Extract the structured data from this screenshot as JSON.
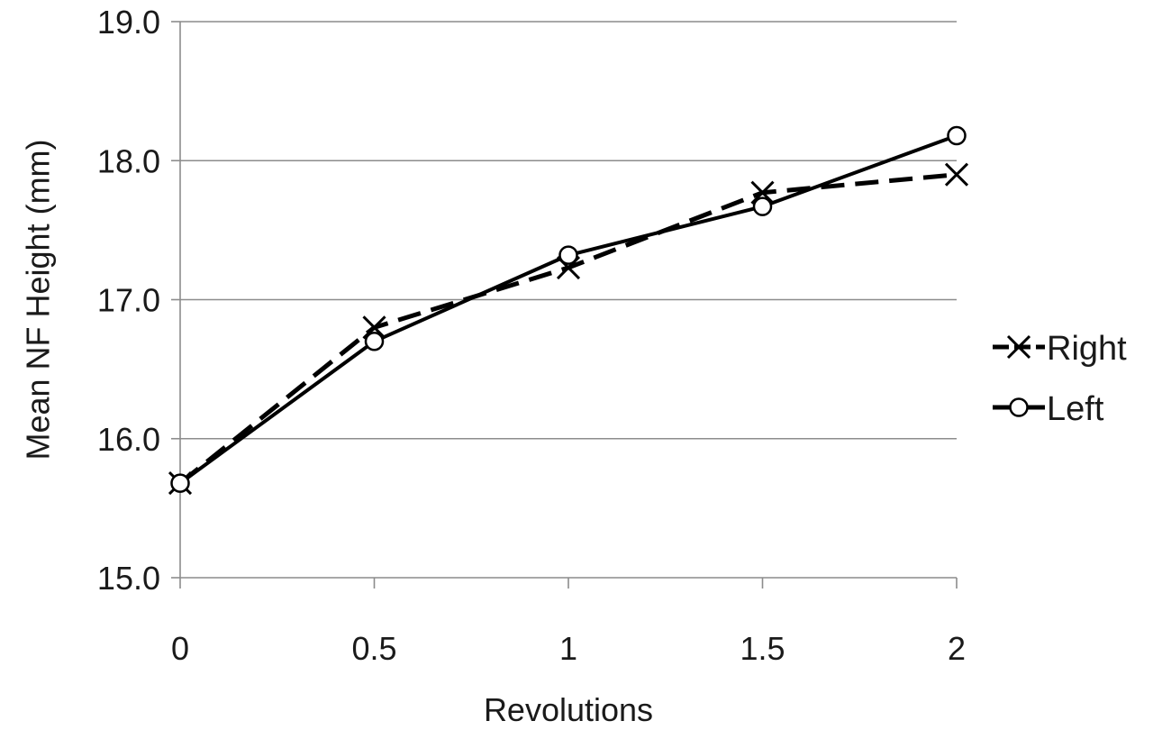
{
  "chart_data": {
    "type": "line",
    "title": "",
    "xlabel": "Revolutions",
    "ylabel": "Mean NF Height (mm)",
    "x": [
      0,
      0.5,
      1,
      1.5,
      2
    ],
    "x_tick_labels": [
      "0",
      "0.5",
      "1",
      "1.5",
      "2"
    ],
    "ylim": [
      15.0,
      19.0
    ],
    "y_ticks": [
      15.0,
      16.0,
      17.0,
      18.0,
      19.0
    ],
    "y_tick_labels": [
      "15.0",
      "16.0",
      "17.0",
      "18.0",
      "19.0"
    ],
    "grid": "horizontal",
    "legend_position": "right",
    "series": [
      {
        "name": "Right",
        "values": [
          15.68,
          16.8,
          17.23,
          17.77,
          17.9
        ],
        "line_style": "dashed",
        "marker": "x",
        "color": "#000000"
      },
      {
        "name": "Left",
        "values": [
          15.68,
          16.7,
          17.32,
          17.67,
          18.18
        ],
        "line_style": "solid",
        "marker": "circle",
        "color": "#000000"
      }
    ]
  }
}
